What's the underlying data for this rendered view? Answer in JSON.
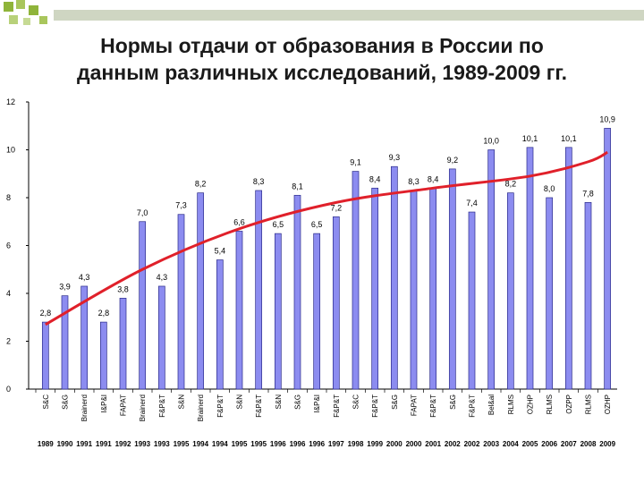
{
  "title_line1": "Нормы отдачи от образования в России по",
  "title_line2": "данным различных исследований, 1989-2009 гг.",
  "colors": {
    "bar_fill": "#8c8cf0",
    "bar_stroke": "#2a2a8a",
    "trend": "#e0202a",
    "deco_green": "#8fb43a",
    "deco_gray": "#cfd6c2"
  },
  "chart_data": {
    "type": "bar",
    "title": "Нормы отдачи от образования в России по данным различных исследований, 1989-2009 гг.",
    "xlabel": "",
    "ylabel": "",
    "ylim": [
      0,
      12
    ],
    "yticks": [
      0,
      2,
      4,
      6,
      8,
      10,
      12
    ],
    "grid": false,
    "legend": "none",
    "categories": [
      "S&C",
      "S&G",
      "Brainerd",
      "I&P&I",
      "FAPAT",
      "Brainerd",
      "F&P&T",
      "S&N",
      "Brainerd",
      "F&P&T",
      "S&N",
      "F&P&T",
      "S&N",
      "S&G",
      "I&P&I",
      "F&P&T",
      "S&C",
      "F&P&T",
      "S&G",
      "FAPAT",
      "F&P&T",
      "S&G",
      "F&P&T",
      "Bel&al",
      "RLMS",
      "OZHP",
      "RLMS",
      "OZPP",
      "RLMS",
      "OZHP"
    ],
    "years": [
      "1989",
      "1990",
      "1991",
      "1991",
      "1992",
      "1993",
      "1993",
      "1995",
      "1994",
      "1994",
      "1995",
      "1995",
      "1996",
      "1996",
      "1996",
      "1997",
      "1998",
      "1999",
      "2000",
      "2000",
      "2001",
      "2002",
      "2002",
      "2003",
      "2004",
      "2005",
      "2006",
      "2007",
      "2008",
      "2009"
    ],
    "values": [
      2.8,
      3.9,
      4.3,
      2.8,
      3.8,
      7.0,
      4.3,
      7.3,
      8.2,
      5.4,
      6.6,
      8.3,
      6.5,
      8.1,
      6.5,
      7.2,
      9.1,
      8.4,
      9.3,
      8.3,
      8.4,
      9.2,
      7.4,
      10.0,
      8.2,
      10.1,
      8.0,
      10.1,
      7.8,
      10.9
    ],
    "data_labels": [
      "2,8",
      "3,9",
      "4,3",
      "2,8",
      "3,8",
      "7,0",
      "4,3",
      "7,3",
      "8,2",
      "5,4",
      "6,6",
      "8,3",
      "6,5",
      "8,1",
      "6,5",
      "7,2",
      "9,1",
      "8,4",
      "9,3",
      "8,3",
      "8,4",
      "9,2",
      "7,4",
      "10,0",
      "8,2",
      "10,1",
      "8,0",
      "10,1",
      "7,8",
      "10,9"
    ],
    "trend_line": {
      "type": "smooth",
      "points": [
        [
          0,
          2.7
        ],
        [
          5,
          5.0
        ],
        [
          10,
          6.7
        ],
        [
          15,
          7.8
        ],
        [
          20,
          8.4
        ],
        [
          25,
          8.9
        ],
        [
          28,
          9.5
        ],
        [
          29,
          9.9
        ]
      ]
    }
  }
}
